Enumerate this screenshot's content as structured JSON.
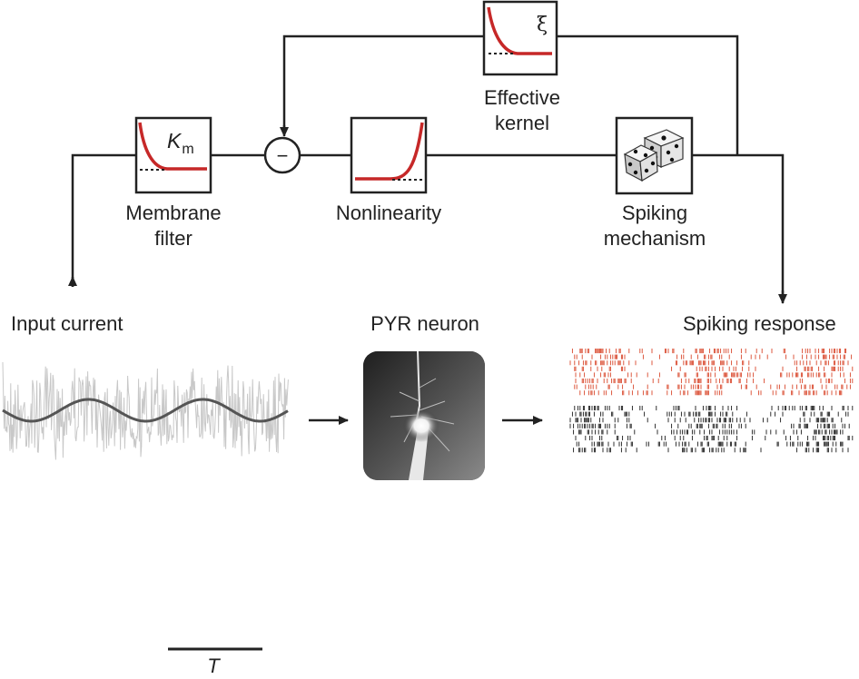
{
  "blocks": {
    "effective_kernel": {
      "symbol": "ξ",
      "label_line1": "Effective",
      "label_line2": "kernel"
    },
    "membrane_filter": {
      "symbol_main": "K",
      "symbol_sub": "m",
      "label_line1": "Membrane",
      "label_line2": "filter"
    },
    "comparator": {
      "symbol": "−"
    },
    "nonlinearity": {
      "label": "Nonlinearity"
    },
    "spiking_mechanism": {
      "label_line1": "Spiking",
      "label_line2": "mechanism",
      "icon": "dice-icon"
    }
  },
  "bottom": {
    "input_current": "Input current",
    "pyr_neuron": "PYR neuron",
    "spiking_response": "Spiking response"
  },
  "scale_bar": {
    "label": "T"
  },
  "colors": {
    "kernel_curve": "#c62828",
    "lines": "#222222",
    "noise": "#c8c8c8",
    "signal": "#555555",
    "raster_red": "#d9472b",
    "raster_black": "#1a1a1a"
  }
}
